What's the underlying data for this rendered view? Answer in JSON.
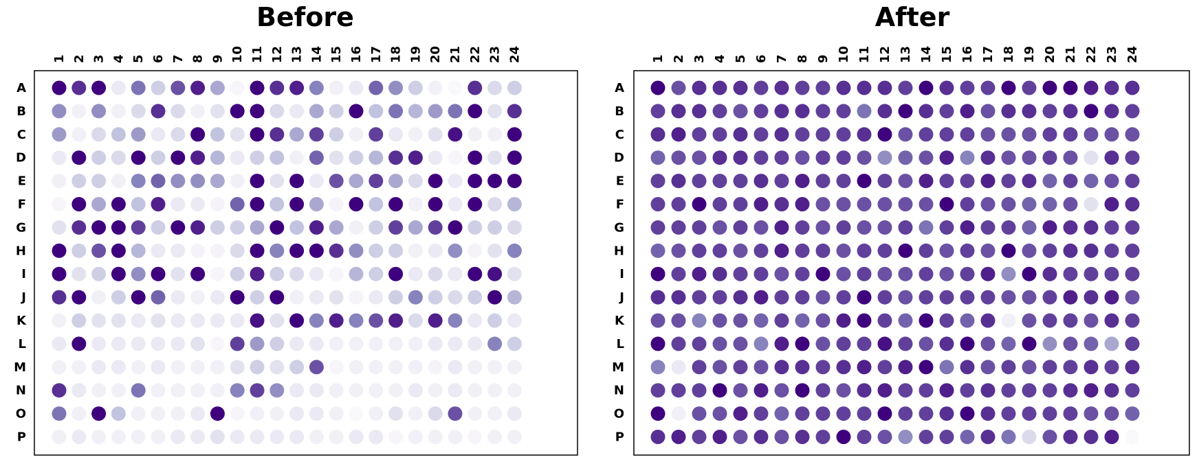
{
  "chart_data": [
    {
      "type": "heatmap",
      "title": "Before",
      "columns": [
        "1",
        "2",
        "3",
        "4",
        "5",
        "6",
        "7",
        "8",
        "9",
        "10",
        "11",
        "12",
        "13",
        "14",
        "15",
        "16",
        "17",
        "18",
        "19",
        "20",
        "21",
        "22",
        "23",
        "24"
      ],
      "rows": [
        "A",
        "B",
        "C",
        "D",
        "E",
        "F",
        "G",
        "H",
        "I",
        "J",
        "K",
        "L",
        "M",
        "N",
        "O",
        "P"
      ],
      "colormap": "Purples",
      "value_range": [
        0,
        1
      ],
      "values": [
        [
          1.0,
          0.85,
          1.0,
          0.15,
          0.65,
          0.3,
          0.75,
          0.9,
          0.45,
          0.05,
          1.0,
          0.85,
          0.9,
          0.6,
          0.1,
          0.15,
          0.7,
          0.55,
          0.3,
          0.1,
          0.03,
          0.85,
          0.25,
          0.3
        ],
        [
          0.55,
          0.1,
          0.55,
          0.1,
          0.25,
          0.85,
          0.25,
          0.1,
          0.2,
          1.0,
          1.0,
          0.25,
          0.15,
          0.45,
          0.3,
          1.0,
          0.35,
          0.65,
          0.4,
          0.5,
          0.65,
          1.0,
          0.2,
          0.85
        ],
        [
          0.5,
          0.1,
          0.25,
          0.35,
          0.5,
          0.15,
          0.25,
          1.0,
          0.35,
          0.2,
          1.0,
          0.85,
          0.45,
          0.8,
          0.3,
          0.1,
          0.8,
          0.15,
          0.1,
          0.2,
          0.95,
          0.1,
          0.1,
          1.0
        ],
        [
          0.15,
          1.0,
          0.3,
          0.25,
          1.0,
          0.3,
          1.0,
          0.9,
          0.4,
          0.15,
          0.3,
          0.35,
          0.1,
          0.7,
          0.2,
          0.3,
          0.4,
          0.85,
          0.9,
          0.15,
          0.05,
          1.0,
          0.2,
          1.0
        ],
        [
          0.1,
          0.3,
          0.3,
          0.1,
          0.6,
          0.7,
          0.55,
          0.55,
          0.45,
          0.1,
          1.0,
          0.2,
          1.0,
          0.15,
          0.75,
          0.45,
          0.8,
          0.45,
          0.25,
          1.0,
          0.15,
          1.0,
          1.0,
          1.0
        ],
        [
          0.05,
          1.0,
          0.45,
          1.0,
          0.35,
          0.9,
          0.15,
          0.15,
          0.07,
          0.7,
          1.0,
          0.35,
          1.0,
          0.45,
          0.07,
          1.0,
          0.35,
          1.0,
          0.1,
          1.0,
          0.15,
          1.0,
          0.25,
          0.4
        ],
        [
          0.2,
          0.85,
          1.0,
          1.0,
          0.8,
          0.3,
          1.0,
          0.9,
          0.3,
          0.3,
          0.45,
          1.0,
          0.35,
          0.9,
          0.45,
          0.1,
          0.3,
          0.8,
          0.45,
          0.8,
          1.0,
          0.3,
          0.3,
          0.25
        ],
        [
          1.0,
          0.3,
          0.75,
          1.0,
          0.4,
          0.15,
          0.15,
          0.07,
          0.07,
          0.25,
          1.0,
          0.6,
          1.0,
          1.0,
          0.85,
          0.55,
          0.3,
          0.3,
          0.1,
          0.15,
          0.55,
          0.07,
          0.2,
          0.6
        ],
        [
          1.0,
          0.2,
          0.3,
          1.0,
          0.55,
          1.0,
          0.2,
          1.0,
          0.05,
          0.3,
          0.9,
          0.3,
          0.25,
          0.15,
          0.05,
          0.4,
          0.3,
          1.0,
          0.15,
          0.25,
          0.15,
          1.0,
          0.95,
          0.2
        ],
        [
          0.85,
          1.0,
          0.1,
          0.3,
          1.0,
          0.7,
          0.15,
          0.1,
          0.15,
          1.0,
          0.3,
          1.0,
          0.1,
          0.15,
          0.2,
          0.07,
          0.15,
          0.3,
          0.6,
          0.3,
          0.25,
          0.3,
          1.0,
          0.4
        ],
        [
          0.1,
          0.3,
          0.2,
          0.2,
          0.15,
          0.2,
          0.15,
          0.15,
          0.15,
          0.15,
          0.95,
          0.2,
          1.0,
          0.6,
          0.9,
          0.6,
          0.75,
          0.9,
          0.25,
          0.9,
          0.6,
          0.15,
          0.3,
          0.15
        ],
        [
          0.15,
          1.0,
          0.15,
          0.15,
          0.15,
          0.15,
          0.15,
          0.2,
          0.05,
          0.8,
          0.5,
          0.3,
          0.15,
          0.15,
          0.1,
          0.1,
          0.1,
          0.1,
          0.1,
          0.15,
          0.15,
          0.15,
          0.6,
          0.3
        ],
        [
          0.1,
          0.1,
          0.15,
          0.15,
          0.1,
          0.15,
          0.1,
          0.1,
          0.1,
          0.2,
          0.3,
          0.2,
          0.3,
          0.75,
          0.05,
          0.1,
          0.1,
          0.1,
          0.1,
          0.07,
          0.15,
          0.1,
          0.1,
          0.1
        ],
        [
          0.85,
          0.15,
          0.1,
          0.1,
          0.65,
          0.1,
          0.1,
          0.1,
          0.1,
          0.6,
          0.8,
          0.55,
          0.15,
          0.15,
          0.1,
          0.1,
          0.1,
          0.1,
          0.15,
          0.1,
          0.15,
          0.1,
          0.1,
          0.1
        ],
        [
          0.65,
          0.1,
          1.0,
          0.35,
          0.1,
          0.1,
          0.1,
          0.15,
          1.0,
          0.05,
          0.1,
          0.1,
          0.15,
          0.15,
          0.1,
          0.03,
          0.1,
          0.2,
          0.1,
          0.25,
          0.75,
          0.1,
          0.1,
          0.15
        ],
        [
          0.1,
          0.15,
          0.1,
          0.1,
          0.1,
          0.1,
          0.15,
          0.15,
          0.2,
          0.15,
          0.15,
          0.15,
          0.15,
          0.1,
          0.1,
          0.15,
          0.15,
          0.05,
          0.1,
          0.1,
          0.1,
          0.05,
          0.1,
          0.1
        ]
      ]
    },
    {
      "type": "heatmap",
      "title": "After",
      "columns": [
        "1",
        "2",
        "3",
        "4",
        "5",
        "6",
        "7",
        "8",
        "9",
        "10",
        "11",
        "12",
        "13",
        "14",
        "15",
        "16",
        "17",
        "18",
        "19",
        "20",
        "21",
        "22",
        "23",
        "24"
      ],
      "rows": [
        "A",
        "B",
        "C",
        "D",
        "E",
        "F",
        "G",
        "H",
        "I",
        "J",
        "K",
        "L",
        "M",
        "N",
        "O",
        "P"
      ],
      "colormap": "Purples",
      "value_range": [
        0,
        1
      ],
      "values": [
        [
          1.0,
          0.75,
          0.85,
          0.85,
          0.85,
          0.8,
          0.85,
          0.8,
          0.8,
          0.85,
          0.85,
          0.85,
          0.8,
          1.0,
          0.85,
          0.8,
          0.8,
          1.0,
          0.8,
          1.0,
          1.0,
          0.9,
          0.85,
          0.85
        ],
        [
          0.8,
          0.85,
          0.85,
          0.8,
          0.75,
          0.8,
          0.85,
          0.85,
          0.8,
          0.8,
          0.65,
          0.85,
          1.0,
          0.85,
          0.8,
          0.9,
          0.75,
          0.85,
          0.85,
          0.8,
          0.85,
          1.0,
          0.85,
          0.8
        ],
        [
          0.85,
          0.9,
          0.8,
          0.8,
          0.85,
          0.8,
          0.85,
          0.8,
          0.8,
          0.8,
          0.85,
          1.0,
          0.75,
          0.8,
          0.8,
          0.8,
          0.75,
          0.75,
          0.75,
          0.8,
          0.8,
          0.75,
          0.75,
          0.75
        ],
        [
          0.7,
          0.75,
          0.75,
          0.85,
          0.85,
          0.8,
          0.8,
          0.75,
          0.8,
          0.8,
          0.75,
          0.55,
          0.7,
          0.75,
          0.9,
          0.6,
          0.85,
          0.75,
          0.75,
          0.8,
          0.75,
          0.2,
          0.85,
          0.8
        ],
        [
          0.8,
          0.85,
          0.8,
          0.8,
          0.8,
          0.85,
          0.8,
          0.9,
          0.8,
          0.8,
          1.0,
          0.8,
          0.75,
          0.9,
          0.8,
          0.8,
          0.9,
          0.8,
          0.85,
          0.7,
          0.8,
          0.7,
          0.75,
          0.8
        ],
        [
          0.8,
          0.8,
          1.0,
          0.8,
          0.8,
          0.9,
          0.85,
          0.9,
          0.75,
          0.75,
          0.75,
          0.75,
          0.75,
          0.75,
          1.0,
          0.8,
          0.75,
          0.75,
          0.7,
          0.7,
          0.75,
          0.2,
          0.9,
          0.85
        ],
        [
          0.8,
          0.8,
          0.8,
          0.75,
          0.8,
          0.75,
          0.9,
          0.8,
          0.75,
          0.8,
          0.75,
          0.75,
          0.8,
          0.65,
          0.8,
          0.9,
          0.8,
          0.8,
          0.7,
          0.9,
          0.85,
          0.85,
          0.8,
          0.8
        ],
        [
          0.7,
          0.75,
          0.8,
          0.8,
          0.75,
          0.8,
          0.9,
          0.8,
          0.8,
          0.75,
          0.8,
          0.8,
          1.0,
          0.8,
          0.75,
          0.8,
          0.75,
          1.0,
          0.75,
          0.8,
          0.85,
          0.85,
          0.8,
          0.8
        ],
        [
          1.0,
          0.8,
          0.9,
          0.85,
          0.8,
          0.8,
          0.75,
          0.8,
          1.0,
          0.75,
          0.8,
          0.75,
          0.75,
          0.8,
          0.75,
          0.8,
          0.9,
          0.55,
          1.0,
          0.85,
          0.8,
          0.8,
          0.8,
          0.8
        ],
        [
          0.85,
          0.85,
          0.8,
          0.8,
          0.85,
          0.9,
          0.8,
          0.8,
          0.75,
          0.8,
          1.0,
          0.8,
          0.75,
          0.8,
          0.8,
          0.8,
          0.8,
          0.75,
          0.75,
          0.8,
          0.9,
          0.85,
          0.9,
          0.75
        ],
        [
          0.75,
          0.75,
          0.6,
          0.75,
          0.75,
          0.7,
          0.8,
          0.7,
          0.75,
          0.9,
          1.0,
          0.8,
          0.7,
          1.0,
          0.8,
          0.7,
          0.85,
          0.1,
          0.75,
          0.8,
          0.8,
          0.75,
          0.85,
          0.8
        ],
        [
          1.0,
          0.8,
          0.8,
          0.75,
          0.75,
          0.6,
          0.9,
          1.0,
          0.75,
          0.8,
          0.8,
          0.95,
          0.8,
          0.75,
          0.85,
          1.0,
          0.75,
          0.7,
          1.0,
          0.55,
          0.75,
          0.7,
          0.45,
          0.8
        ],
        [
          0.6,
          0.15,
          0.8,
          0.75,
          0.8,
          0.75,
          0.85,
          0.85,
          0.8,
          0.85,
          0.9,
          0.8,
          0.9,
          1.0,
          0.65,
          0.85,
          0.75,
          0.8,
          0.75,
          0.8,
          0.8,
          0.85,
          0.8,
          0.85
        ],
        [
          0.8,
          0.8,
          0.8,
          1.0,
          0.75,
          0.9,
          0.75,
          1.0,
          0.8,
          0.75,
          0.85,
          0.9,
          0.8,
          0.8,
          0.9,
          0.8,
          0.85,
          0.8,
          0.8,
          0.8,
          0.85,
          0.9,
          0.85,
          0.8
        ],
        [
          1.0,
          0.1,
          0.75,
          0.75,
          0.9,
          0.8,
          0.7,
          0.8,
          0.8,
          0.8,
          0.8,
          1.0,
          0.8,
          0.8,
          0.85,
          1.0,
          0.85,
          0.8,
          0.8,
          0.8,
          0.8,
          0.75,
          0.75,
          0.7
        ],
        [
          0.85,
          0.9,
          0.8,
          0.9,
          0.75,
          0.85,
          0.75,
          0.85,
          0.8,
          1.0,
          0.8,
          0.75,
          0.55,
          0.8,
          0.8,
          0.7,
          0.85,
          0.65,
          0.25,
          0.75,
          0.85,
          0.85,
          0.9,
          0.03
        ]
      ]
    }
  ]
}
